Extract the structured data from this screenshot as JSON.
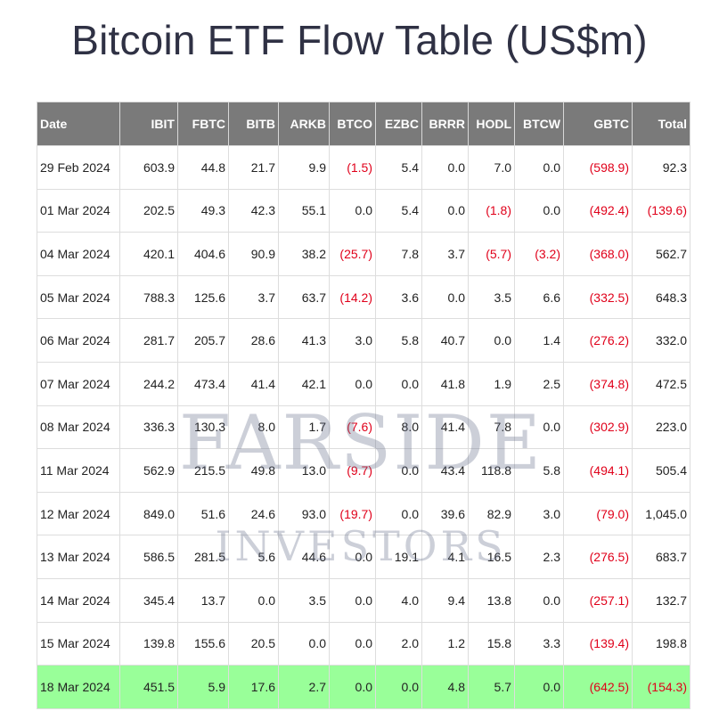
{
  "title": "Bitcoin ETF Flow Table (US$m)",
  "watermark": {
    "line1": "FARSIDE",
    "line2": "INVESTORS"
  },
  "colors": {
    "header_bg": "#7a7a7a",
    "negative": "#e0001a",
    "highlight_row": "#99ff99"
  },
  "chart_data": {
    "type": "table",
    "title": "Bitcoin ETF Flow Table (US$m)",
    "columns": [
      "Date",
      "IBIT",
      "FBTC",
      "BITB",
      "ARKB",
      "BTCO",
      "EZBC",
      "BRRR",
      "HODL",
      "BTCW",
      "GBTC",
      "Total"
    ],
    "rows": [
      [
        "29 Feb 2024",
        "603.9",
        "44.8",
        "21.7",
        "9.9",
        "(1.5)",
        "5.4",
        "0.0",
        "7.0",
        "0.0",
        "(598.9)",
        "92.3"
      ],
      [
        "01 Mar 2024",
        "202.5",
        "49.3",
        "42.3",
        "55.1",
        "0.0",
        "5.4",
        "0.0",
        "(1.8)",
        "0.0",
        "(492.4)",
        "(139.6)"
      ],
      [
        "04 Mar 2024",
        "420.1",
        "404.6",
        "90.9",
        "38.2",
        "(25.7)",
        "7.8",
        "3.7",
        "(5.7)",
        "(3.2)",
        "(368.0)",
        "562.7"
      ],
      [
        "05 Mar 2024",
        "788.3",
        "125.6",
        "3.7",
        "63.7",
        "(14.2)",
        "3.6",
        "0.0",
        "3.5",
        "6.6",
        "(332.5)",
        "648.3"
      ],
      [
        "06 Mar 2024",
        "281.7",
        "205.7",
        "28.6",
        "41.3",
        "3.0",
        "5.8",
        "40.7",
        "0.0",
        "1.4",
        "(276.2)",
        "332.0"
      ],
      [
        "07 Mar 2024",
        "244.2",
        "473.4",
        "41.4",
        "42.1",
        "0.0",
        "0.0",
        "41.8",
        "1.9",
        "2.5",
        "(374.8)",
        "472.5"
      ],
      [
        "08 Mar 2024",
        "336.3",
        "130.3",
        "8.0",
        "1.7",
        "(7.6)",
        "8.0",
        "41.4",
        "7.8",
        "0.0",
        "(302.9)",
        "223.0"
      ],
      [
        "11 Mar 2024",
        "562.9",
        "215.5",
        "49.8",
        "13.0",
        "(9.7)",
        "0.0",
        "43.4",
        "118.8",
        "5.8",
        "(494.1)",
        "505.4"
      ],
      [
        "12 Mar 2024",
        "849.0",
        "51.6",
        "24.6",
        "93.0",
        "(19.7)",
        "0.0",
        "39.6",
        "82.9",
        "3.0",
        "(79.0)",
        "1,045.0"
      ],
      [
        "13 Mar 2024",
        "586.5",
        "281.5",
        "5.6",
        "44.6",
        "0.0",
        "19.1",
        "4.1",
        "16.5",
        "2.3",
        "(276.5)",
        "683.7"
      ],
      [
        "14 Mar 2024",
        "345.4",
        "13.7",
        "0.0",
        "3.5",
        "0.0",
        "4.0",
        "9.4",
        "13.8",
        "0.0",
        "(257.1)",
        "132.7"
      ],
      [
        "15 Mar 2024",
        "139.8",
        "155.6",
        "20.5",
        "0.0",
        "0.0",
        "2.0",
        "1.2",
        "15.8",
        "3.3",
        "(139.4)",
        "198.8"
      ],
      [
        "18 Mar 2024",
        "451.5",
        "5.9",
        "17.6",
        "2.7",
        "0.0",
        "0.0",
        "4.8",
        "5.7",
        "0.0",
        "(642.5)",
        "(154.3)"
      ]
    ],
    "highlighted_row": "18 Mar 2024"
  }
}
